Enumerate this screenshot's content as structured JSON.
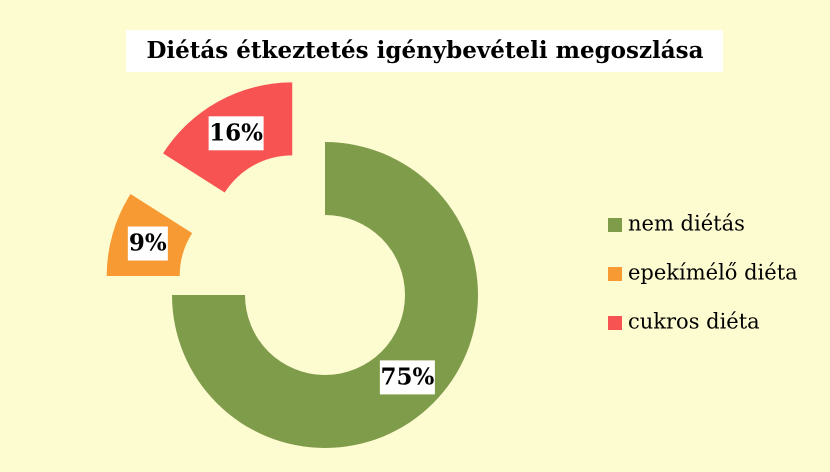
{
  "chart_data": {
    "type": "donut",
    "title": "Diétás étkeztetés igénybevételi megoszlása",
    "categories": [
      "nem diétás",
      "epekímélő diéta",
      "cukros diéta"
    ],
    "values": [
      75,
      9,
      16
    ],
    "value_labels": [
      "75%",
      "9%",
      "16%"
    ],
    "colors": [
      "#7f9c4b",
      "#f79a33",
      "#f85353"
    ],
    "legend": "right"
  }
}
